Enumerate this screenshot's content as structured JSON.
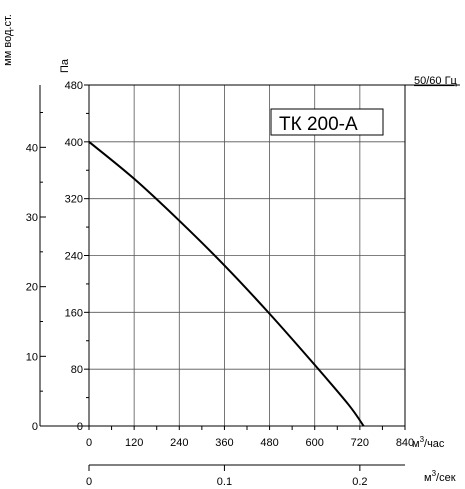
{
  "chart_data": {
    "type": "line",
    "title": "ТК 200-А",
    "frequency_label": "50/60 Гц",
    "y_label_pa": "Па",
    "y_label_mm": "мм вод.ст.",
    "x_unit_hour": "м³/час",
    "x_unit_sec_base": "м",
    "x_unit_sec_sup": "3",
    "x_unit_sec_suffix": "/сек",
    "x_unit_hour_base": "м",
    "x_unit_hour_sup": "3",
    "x_unit_hour_suffix": "/час",
    "xlim": [
      0,
      840
    ],
    "ylim": [
      0,
      480
    ],
    "x_ticks": [
      "0",
      "120",
      "240",
      "360",
      "480",
      "600",
      "720",
      "840"
    ],
    "y_ticks": [
      "0",
      "80",
      "160",
      "240",
      "320",
      "400",
      "480"
    ],
    "mm_ticks": [
      "0",
      "10",
      "20",
      "30",
      "40"
    ],
    "sec_ticks": [
      "0",
      "0.1",
      "0.2"
    ],
    "grid": true,
    "series": [
      {
        "name": "ТК 200-А",
        "x": [
          0,
          120,
          240,
          360,
          480,
          600,
          690,
          730
        ],
        "y": [
          400,
          348,
          289,
          226,
          158,
          86,
          30,
          0
        ]
      }
    ]
  }
}
